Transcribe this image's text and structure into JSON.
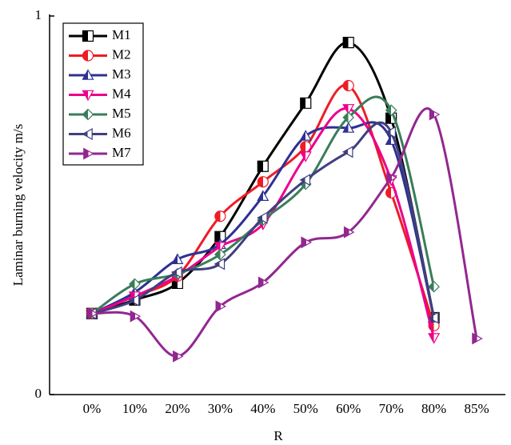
{
  "chart_data": {
    "type": "line",
    "x_label": "R",
    "y_label": "Laminar burning velocity m/s",
    "categories": [
      "0%",
      "10%",
      "20%",
      "30%",
      "40%",
      "50%",
      "60%",
      "70%",
      "80%",
      "85%"
    ],
    "ylim": [
      0,
      1
    ],
    "yticks": [
      0,
      1
    ],
    "legend": "top-left",
    "series": [
      {
        "name": "M1",
        "color": "#000000",
        "marker": "square",
        "values": [
          0.214,
          0.25,
          0.294,
          0.417,
          0.603,
          0.77,
          0.93,
          0.73,
          0.203,
          null
        ]
      },
      {
        "name": "M2",
        "color": "#ee1c25",
        "marker": "circle",
        "values": [
          0.214,
          0.26,
          0.313,
          0.471,
          0.562,
          0.655,
          0.816,
          0.533,
          0.182,
          null
        ]
      },
      {
        "name": "M3",
        "color": "#2e3192",
        "marker": "triangle-up",
        "values": [
          0.214,
          0.27,
          0.357,
          0.397,
          0.524,
          0.683,
          0.704,
          0.672,
          0.203,
          null
        ]
      },
      {
        "name": "M4",
        "color": "#ec008c",
        "marker": "triangle-down",
        "values": [
          0.214,
          0.26,
          0.313,
          0.391,
          0.45,
          0.63,
          0.755,
          0.567,
          0.15,
          null
        ]
      },
      {
        "name": "M5",
        "color": "#3a7d5a",
        "marker": "diamond",
        "values": [
          0.214,
          0.292,
          0.319,
          0.37,
          0.461,
          0.556,
          0.732,
          0.751,
          0.285,
          null
        ]
      },
      {
        "name": "M6",
        "color": "#3f3f7f",
        "marker": "triangle-left",
        "values": [
          0.214,
          0.249,
          0.323,
          0.345,
          0.467,
          0.567,
          0.641,
          0.693,
          0.203,
          null
        ]
      },
      {
        "name": "M7",
        "color": "#92278f",
        "marker": "triangle-right",
        "values": [
          0.214,
          0.207,
          0.101,
          0.233,
          0.296,
          0.402,
          0.429,
          0.573,
          0.74,
          0.148
        ]
      }
    ]
  }
}
